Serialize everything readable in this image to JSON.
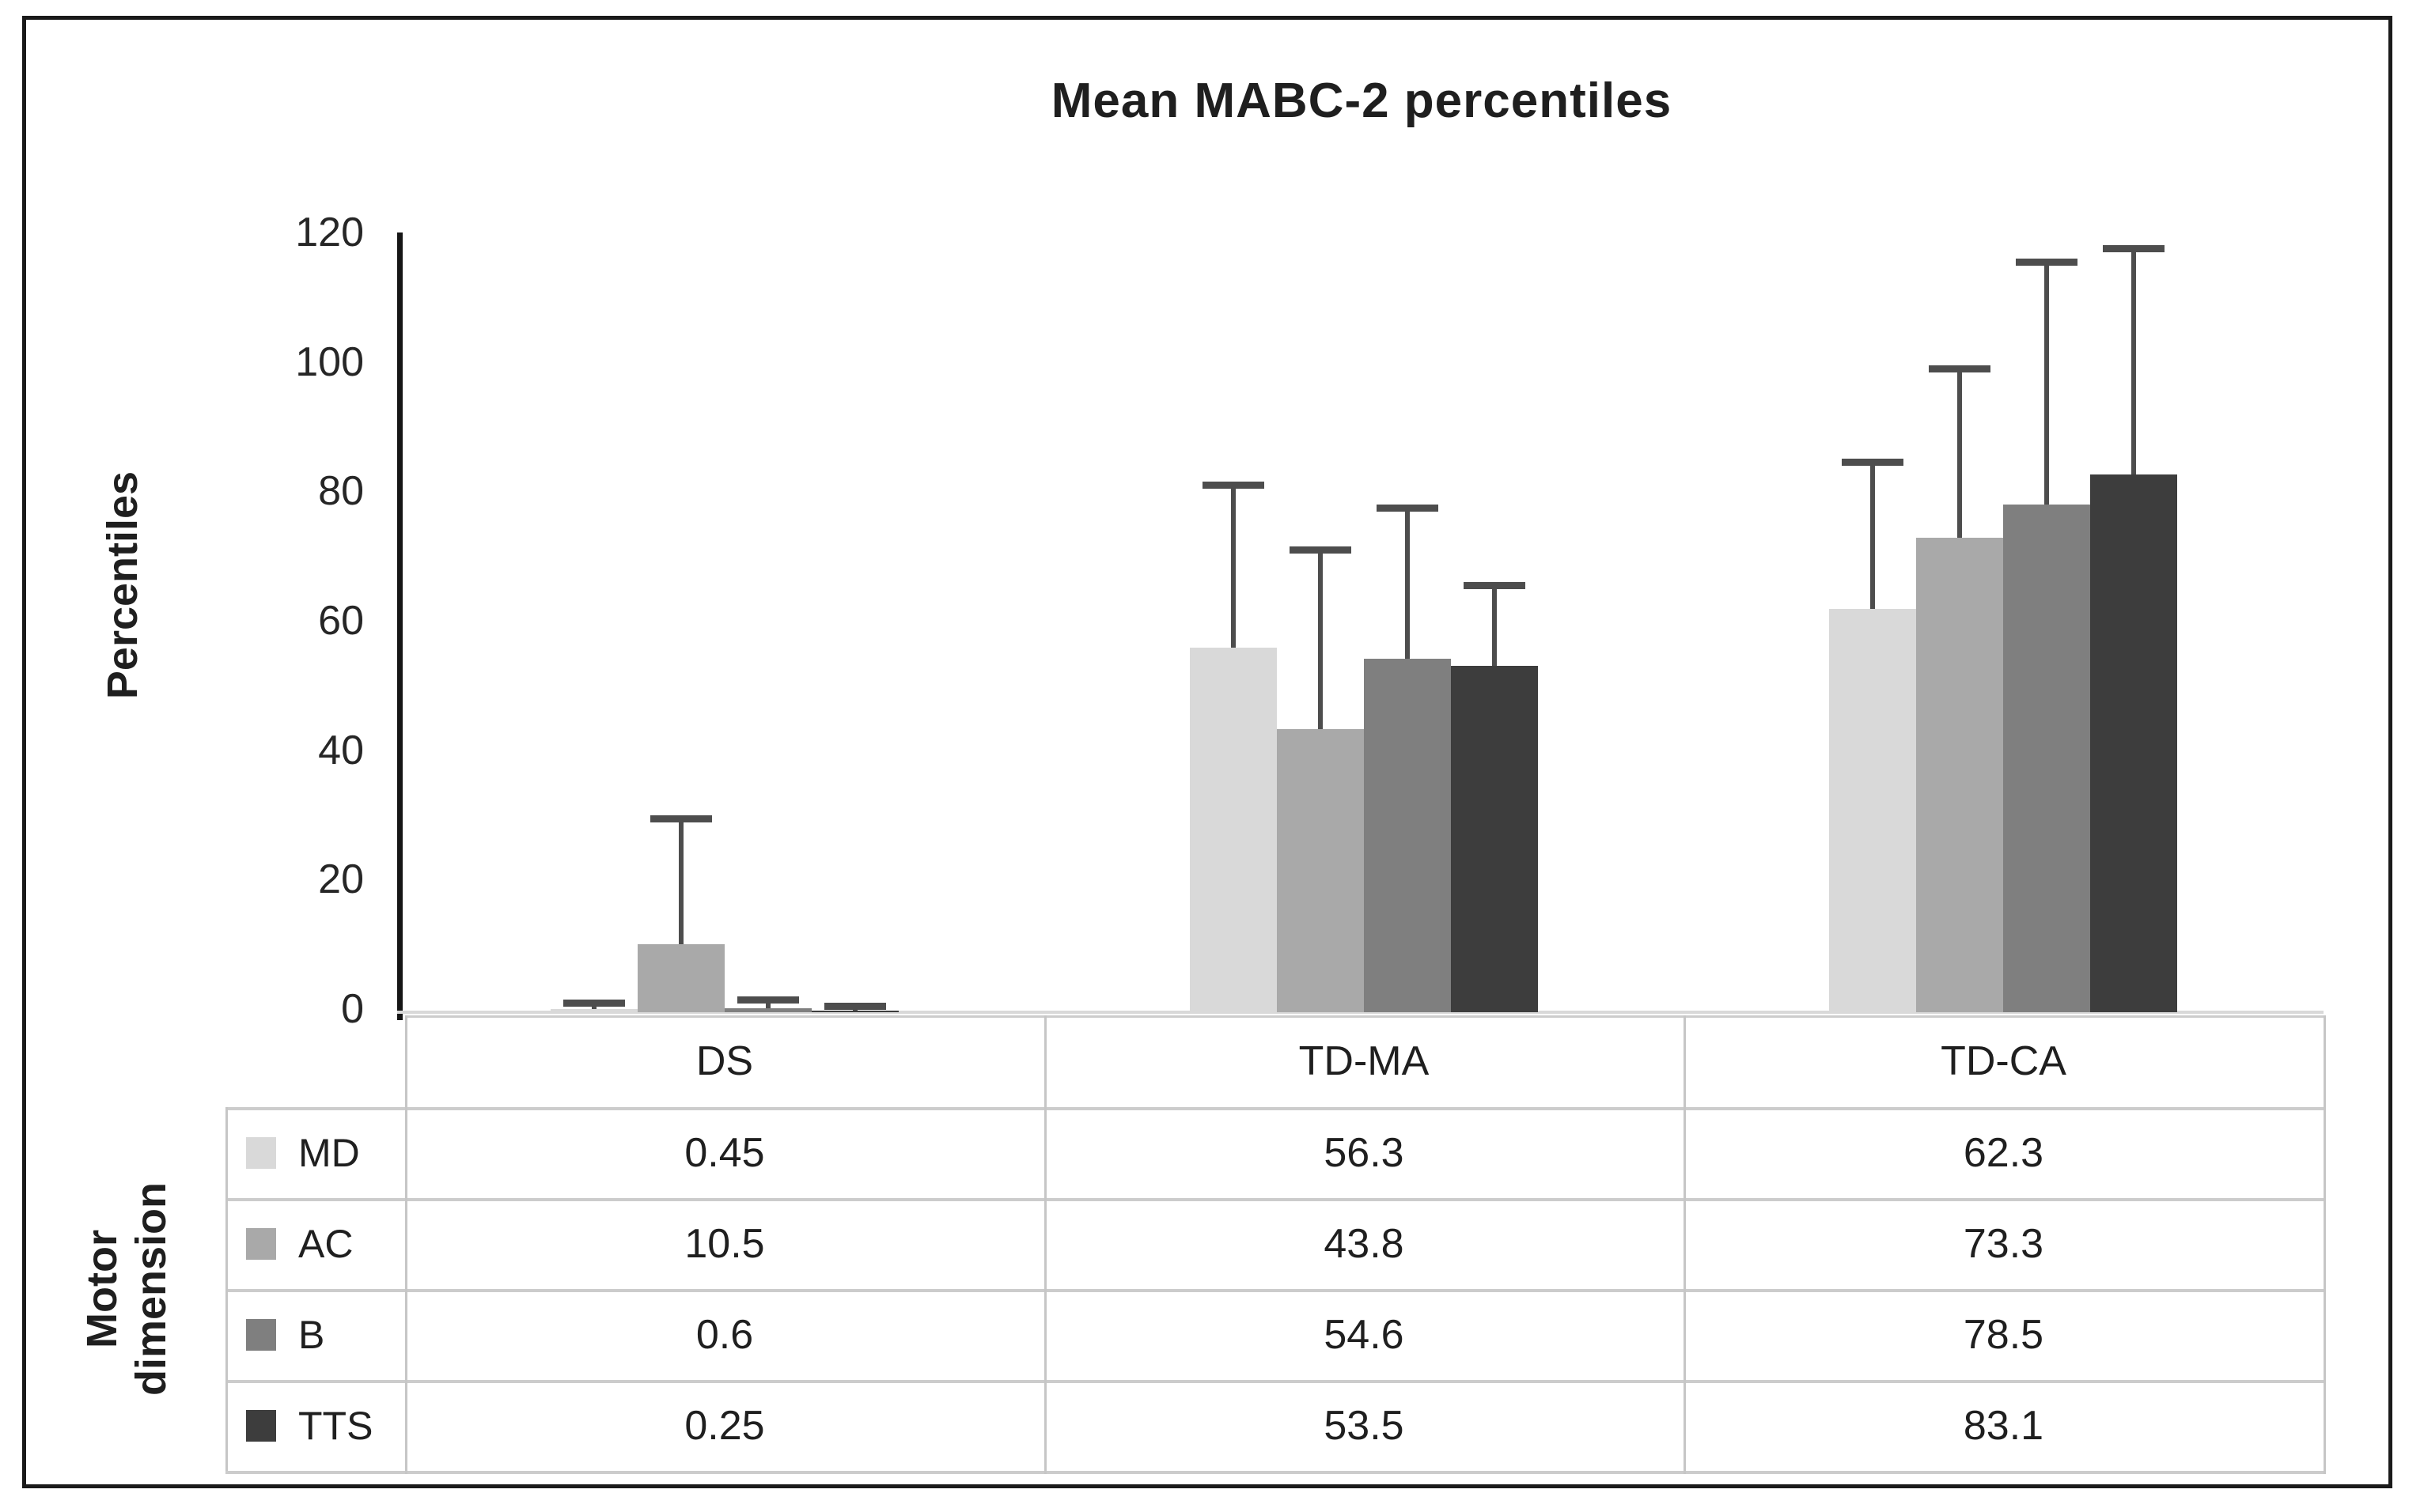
{
  "figure": {
    "title": "Mean MABC-2 percentiles"
  },
  "chart_data": {
    "type": "bar",
    "title": "Mean MABC-2 percentiles",
    "ylabel": "Percentiles",
    "side_label": [
      "Motor",
      "dimension"
    ],
    "side_label_full": "Motor dimension",
    "categories": [
      "DS",
      "TD-MA",
      "TD-CA"
    ],
    "series": [
      {
        "name": "MD",
        "color": "#d9d9d9",
        "values": [
          0.45,
          56.3,
          62.3
        ],
        "error_bar_top": [
          1.5,
          81.5,
          85
        ]
      },
      {
        "name": "AC",
        "color": "#a9a9a9",
        "values": [
          10.5,
          43.8,
          73.3
        ],
        "error_bar_top": [
          30,
          71.5,
          99.5
        ]
      },
      {
        "name": "B",
        "color": "#7f7f7f",
        "values": [
          0.6,
          54.6,
          78.5
        ],
        "error_bar_top": [
          2,
          78,
          116
        ]
      },
      {
        "name": "TTS",
        "color": "#3d3d3d",
        "values": [
          0.25,
          53.5,
          83.1
        ],
        "error_bar_top": [
          1,
          66,
          118
        ]
      }
    ],
    "ylim": [
      0,
      120
    ],
    "yticks": [
      0,
      20,
      40,
      60,
      80,
      100,
      120
    ],
    "grid": false,
    "legend_position": "data-table-left",
    "data_table_shown": true,
    "error_bar_color": "#4d4d4d",
    "axis_color": "#161616",
    "baseline_color": "#d9d9d9",
    "table_border_color": "#c6c6c6"
  }
}
